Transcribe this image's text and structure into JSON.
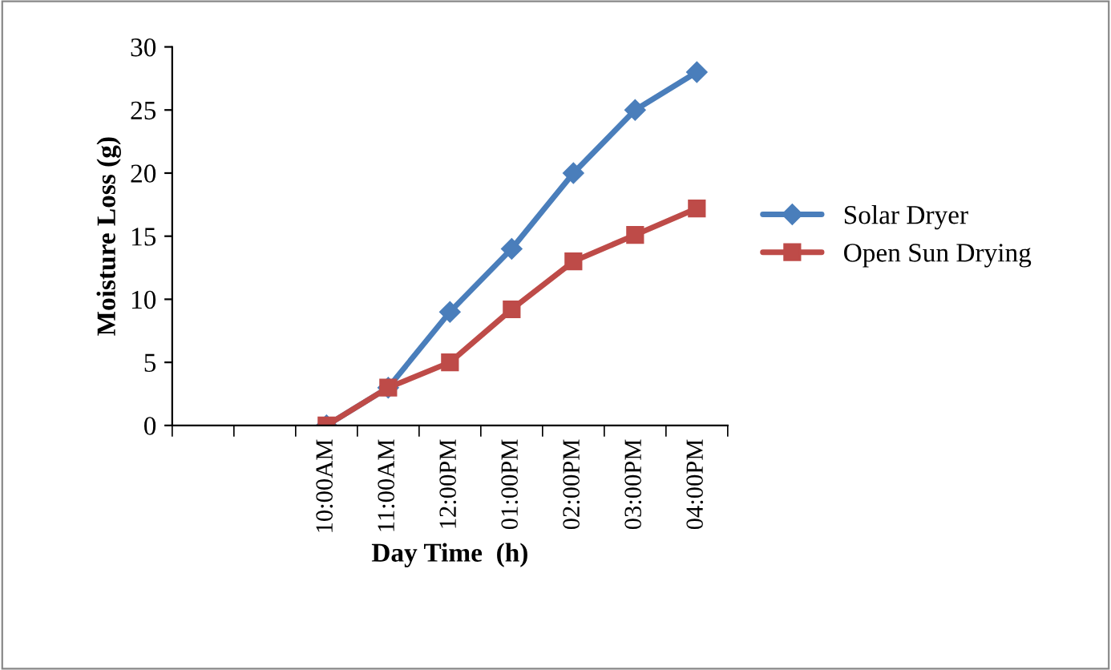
{
  "chart_data": {
    "type": "line",
    "categories": [
      null,
      null,
      "10:00AM",
      "11:00AM",
      "12:00PM",
      "01:00PM",
      "02:00PM",
      "03:00PM",
      "04:00PM"
    ],
    "xlabel": "Day Time  (h)",
    "ylabel": "Moisture Loss (g)",
    "series": [
      {
        "name": "Solar Dryer",
        "color": "#4a7ebb",
        "marker": "diamond",
        "values": [
          null,
          null,
          0,
          3,
          9,
          14,
          20,
          25,
          28
        ]
      },
      {
        "name": "Open Sun Drying",
        "color": "#be4b48",
        "marker": "square",
        "values": [
          null,
          null,
          0,
          3,
          5,
          9.2,
          13,
          15.1,
          17.2
        ]
      }
    ],
    "ylim": [
      0,
      30
    ],
    "yticks": [
      0,
      5,
      10,
      15,
      20,
      25,
      30
    ],
    "grid": false,
    "legend": "right",
    "line_style": "solid"
  }
}
